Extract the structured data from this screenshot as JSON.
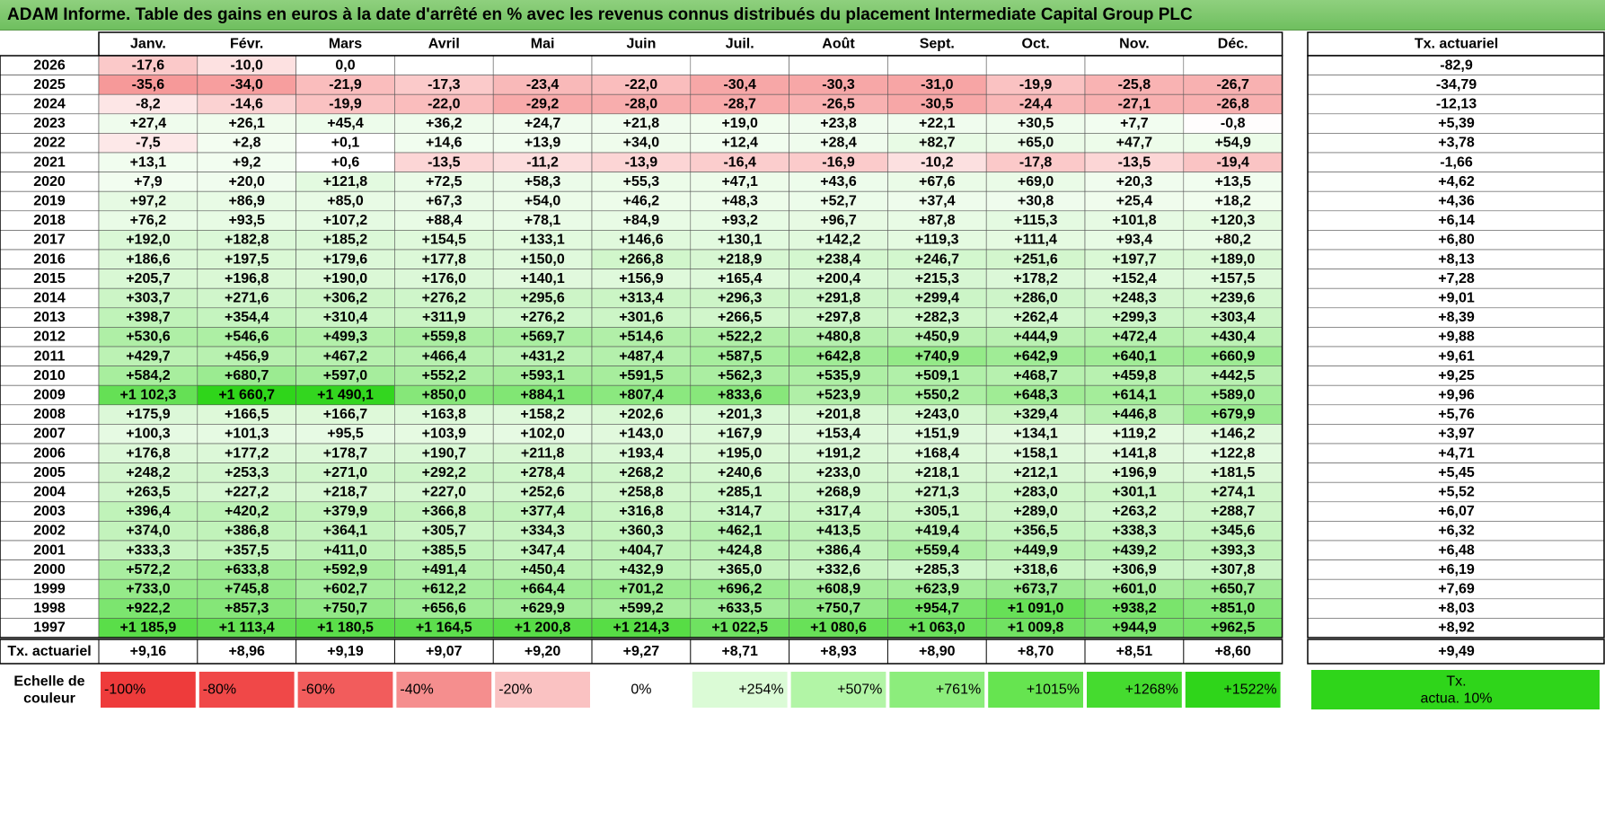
{
  "title": "ADAM Informe. Table des gains en euros à la date d'arrêté en % avec les revenus connus distribués du placement Intermediate Capital Group PLC",
  "chart_data": {
    "type": "heatmap",
    "columns": [
      "Janv.",
      "Févr.",
      "Mars",
      "Avril",
      "Mai",
      "Juin",
      "Juil.",
      "Août",
      "Sept.",
      "Oct.",
      "Nov.",
      "Déc."
    ],
    "actuarial_header": "Tx. actuariel",
    "rows": [
      {
        "year": "2026",
        "values": [
          "-17,6",
          "-10,0",
          "0,0",
          "",
          "",
          "",
          "",
          "",
          "",
          "",
          "",
          ""
        ],
        "actuarial": "-82,9"
      },
      {
        "year": "2025",
        "values": [
          "-35,6",
          "-34,0",
          "-21,9",
          "-17,3",
          "-23,4",
          "-22,0",
          "-30,4",
          "-30,3",
          "-31,0",
          "-19,9",
          "-25,8",
          "-26,7"
        ],
        "actuarial": "-34,79"
      },
      {
        "year": "2024",
        "values": [
          "-8,2",
          "-14,6",
          "-19,9",
          "-22,0",
          "-29,2",
          "-28,0",
          "-28,7",
          "-26,5",
          "-30,5",
          "-24,4",
          "-27,1",
          "-26,8"
        ],
        "actuarial": "-12,13"
      },
      {
        "year": "2023",
        "values": [
          "+27,4",
          "+26,1",
          "+45,4",
          "+36,2",
          "+24,7",
          "+21,8",
          "+19,0",
          "+23,8",
          "+22,1",
          "+30,5",
          "+7,7",
          "-0,8"
        ],
        "actuarial": "+5,39"
      },
      {
        "year": "2022",
        "values": [
          "-7,5",
          "+2,8",
          "+0,1",
          "+14,6",
          "+13,9",
          "+34,0",
          "+12,4",
          "+28,4",
          "+82,7",
          "+65,0",
          "+47,7",
          "+54,9"
        ],
        "actuarial": "+3,78"
      },
      {
        "year": "2021",
        "values": [
          "+13,1",
          "+9,2",
          "+0,6",
          "-13,5",
          "-11,2",
          "-13,9",
          "-16,4",
          "-16,9",
          "-10,2",
          "-17,8",
          "-13,5",
          "-19,4"
        ],
        "actuarial": "-1,66"
      },
      {
        "year": "2020",
        "values": [
          "+7,9",
          "+20,0",
          "+121,8",
          "+72,5",
          "+58,3",
          "+55,3",
          "+47,1",
          "+43,6",
          "+67,6",
          "+69,0",
          "+20,3",
          "+13,5"
        ],
        "actuarial": "+4,62"
      },
      {
        "year": "2019",
        "values": [
          "+97,2",
          "+86,9",
          "+85,0",
          "+67,3",
          "+54,0",
          "+46,2",
          "+48,3",
          "+52,7",
          "+37,4",
          "+30,8",
          "+25,4",
          "+18,2"
        ],
        "actuarial": "+4,36"
      },
      {
        "year": "2018",
        "values": [
          "+76,2",
          "+93,5",
          "+107,2",
          "+88,4",
          "+78,1",
          "+84,9",
          "+93,2",
          "+96,7",
          "+87,8",
          "+115,3",
          "+101,8",
          "+120,3"
        ],
        "actuarial": "+6,14"
      },
      {
        "year": "2017",
        "values": [
          "+192,0",
          "+182,8",
          "+185,2",
          "+154,5",
          "+133,1",
          "+146,6",
          "+130,1",
          "+142,2",
          "+119,3",
          "+111,4",
          "+93,4",
          "+80,2"
        ],
        "actuarial": "+6,80"
      },
      {
        "year": "2016",
        "values": [
          "+186,6",
          "+197,5",
          "+179,6",
          "+177,8",
          "+150,0",
          "+266,8",
          "+218,9",
          "+238,4",
          "+246,7",
          "+251,6",
          "+197,7",
          "+189,0"
        ],
        "actuarial": "+8,13"
      },
      {
        "year": "2015",
        "values": [
          "+205,7",
          "+196,8",
          "+190,0",
          "+176,0",
          "+140,1",
          "+156,9",
          "+165,4",
          "+200,4",
          "+215,3",
          "+178,2",
          "+152,4",
          "+157,5"
        ],
        "actuarial": "+7,28"
      },
      {
        "year": "2014",
        "values": [
          "+303,7",
          "+271,6",
          "+306,2",
          "+276,2",
          "+295,6",
          "+313,4",
          "+296,3",
          "+291,8",
          "+299,4",
          "+286,0",
          "+248,3",
          "+239,6"
        ],
        "actuarial": "+9,01"
      },
      {
        "year": "2013",
        "values": [
          "+398,7",
          "+354,4",
          "+310,4",
          "+311,9",
          "+276,2",
          "+301,6",
          "+266,5",
          "+297,8",
          "+282,3",
          "+262,4",
          "+299,3",
          "+303,4"
        ],
        "actuarial": "+8,39"
      },
      {
        "year": "2012",
        "values": [
          "+530,6",
          "+546,6",
          "+499,3",
          "+559,8",
          "+569,7",
          "+514,6",
          "+522,2",
          "+480,8",
          "+450,9",
          "+444,9",
          "+472,4",
          "+430,4"
        ],
        "actuarial": "+9,88"
      },
      {
        "year": "2011",
        "values": [
          "+429,7",
          "+456,9",
          "+467,2",
          "+466,4",
          "+431,2",
          "+487,4",
          "+587,5",
          "+642,8",
          "+740,9",
          "+642,9",
          "+640,1",
          "+660,9"
        ],
        "actuarial": "+9,61"
      },
      {
        "year": "2010",
        "values": [
          "+584,2",
          "+680,7",
          "+597,0",
          "+552,2",
          "+593,1",
          "+591,5",
          "+562,3",
          "+535,9",
          "+509,1",
          "+468,7",
          "+459,8",
          "+442,5"
        ],
        "actuarial": "+9,25"
      },
      {
        "year": "2009",
        "values": [
          "+1 102,3",
          "+1 660,7",
          "+1 490,1",
          "+850,0",
          "+884,1",
          "+807,4",
          "+833,6",
          "+523,9",
          "+550,2",
          "+648,3",
          "+614,1",
          "+589,0"
        ],
        "actuarial": "+9,96"
      },
      {
        "year": "2008",
        "values": [
          "+175,9",
          "+166,5",
          "+166,7",
          "+163,8",
          "+158,2",
          "+202,6",
          "+201,3",
          "+201,8",
          "+243,0",
          "+329,4",
          "+446,8",
          "+679,9"
        ],
        "actuarial": "+5,76"
      },
      {
        "year": "2007",
        "values": [
          "+100,3",
          "+101,3",
          "+95,5",
          "+103,9",
          "+102,0",
          "+143,0",
          "+167,9",
          "+153,4",
          "+151,9",
          "+134,1",
          "+119,2",
          "+146,2"
        ],
        "actuarial": "+3,97"
      },
      {
        "year": "2006",
        "values": [
          "+176,8",
          "+177,2",
          "+178,7",
          "+190,7",
          "+211,8",
          "+193,4",
          "+195,0",
          "+191,2",
          "+168,4",
          "+158,1",
          "+141,8",
          "+122,8"
        ],
        "actuarial": "+4,71"
      },
      {
        "year": "2005",
        "values": [
          "+248,2",
          "+253,3",
          "+271,0",
          "+292,2",
          "+278,4",
          "+268,2",
          "+240,6",
          "+233,0",
          "+218,1",
          "+212,1",
          "+196,9",
          "+181,5"
        ],
        "actuarial": "+5,45"
      },
      {
        "year": "2004",
        "values": [
          "+263,5",
          "+227,2",
          "+218,7",
          "+227,0",
          "+252,6",
          "+258,8",
          "+285,1",
          "+268,9",
          "+271,3",
          "+283,0",
          "+301,1",
          "+274,1"
        ],
        "actuarial": "+5,52"
      },
      {
        "year": "2003",
        "values": [
          "+396,4",
          "+420,2",
          "+379,9",
          "+366,8",
          "+377,4",
          "+316,8",
          "+314,7",
          "+317,4",
          "+305,1",
          "+289,0",
          "+263,2",
          "+288,7"
        ],
        "actuarial": "+6,07"
      },
      {
        "year": "2002",
        "values": [
          "+374,0",
          "+386,8",
          "+364,1",
          "+305,7",
          "+334,3",
          "+360,3",
          "+462,1",
          "+413,5",
          "+419,4",
          "+356,5",
          "+338,3",
          "+345,6"
        ],
        "actuarial": "+6,32"
      },
      {
        "year": "2001",
        "values": [
          "+333,3",
          "+357,5",
          "+411,0",
          "+385,5",
          "+347,4",
          "+404,7",
          "+424,8",
          "+386,4",
          "+559,4",
          "+449,9",
          "+439,2",
          "+393,3"
        ],
        "actuarial": "+6,48"
      },
      {
        "year": "2000",
        "values": [
          "+572,2",
          "+633,8",
          "+592,9",
          "+491,4",
          "+450,4",
          "+432,9",
          "+365,0",
          "+332,6",
          "+285,3",
          "+318,6",
          "+306,9",
          "+307,8"
        ],
        "actuarial": "+6,19"
      },
      {
        "year": "1999",
        "values": [
          "+733,0",
          "+745,8",
          "+602,7",
          "+612,2",
          "+664,4",
          "+701,2",
          "+696,2",
          "+608,9",
          "+623,9",
          "+673,7",
          "+601,0",
          "+650,7"
        ],
        "actuarial": "+7,69"
      },
      {
        "year": "1998",
        "values": [
          "+922,2",
          "+857,3",
          "+750,7",
          "+656,6",
          "+629,9",
          "+599,2",
          "+633,5",
          "+750,7",
          "+954,7",
          "+1 091,0",
          "+938,2",
          "+851,0"
        ],
        "actuarial": "+8,03"
      },
      {
        "year": "1997",
        "values": [
          "+1 185,9",
          "+1 113,4",
          "+1 180,5",
          "+1 164,5",
          "+1 200,8",
          "+1 214,3",
          "+1 022,5",
          "+1 080,6",
          "+1 063,0",
          "+1 009,8",
          "+944,9",
          "+962,5"
        ],
        "actuarial": "+8,92"
      }
    ],
    "footer": {
      "label": "Tx. actuariel",
      "values": [
        "+9,16",
        "+8,96",
        "+9,19",
        "+9,07",
        "+9,20",
        "+9,27",
        "+8,71",
        "+8,93",
        "+8,90",
        "+8,70",
        "+8,51",
        "+8,60"
      ],
      "total": "+9,49"
    },
    "scale": {
      "label_line1": "Echelle de",
      "label_line2": "couleur",
      "items": [
        {
          "text": "-100%",
          "color": "#ee3b3b"
        },
        {
          "text": "-80%",
          "color": "#f04848"
        },
        {
          "text": "-60%",
          "color": "#f25c5c"
        },
        {
          "text": "-40%",
          "color": "#f58e8e"
        },
        {
          "text": "-20%",
          "color": "#fac2c2"
        },
        {
          "text": "0%",
          "color": "#ffffff"
        },
        {
          "text": "+254%",
          "color": "#dbfbd6"
        },
        {
          "text": "+507%",
          "color": "#b2f5a6"
        },
        {
          "text": "+761%",
          "color": "#8ced7c"
        },
        {
          "text": "+1015%",
          "color": "#66e450"
        },
        {
          "text": "+1268%",
          "color": "#45db2f"
        },
        {
          "text": "+1522%",
          "color": "#2fd51a"
        }
      ],
      "right_line1": "Tx.",
      "right_line2": "actua. 10%",
      "right_color": "#2fd51a"
    }
  }
}
